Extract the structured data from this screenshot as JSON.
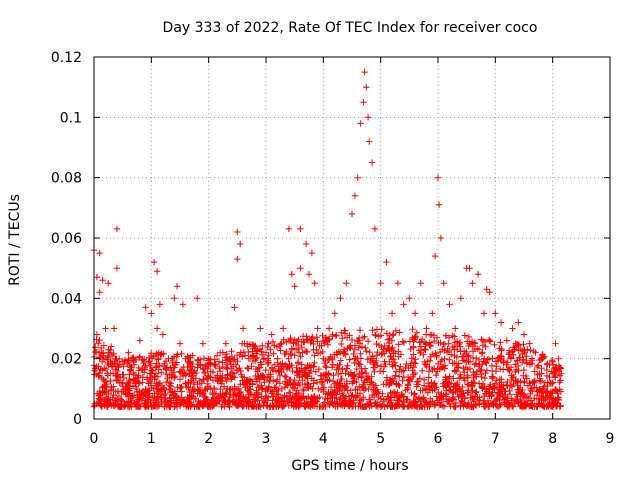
{
  "chart_data": {
    "type": "scatter",
    "title": "Day 333 of 2022, Rate Of TEC Index for receiver coco",
    "xlabel": "GPS time / hours",
    "ylabel": "ROTI / TECUs",
    "xlim": [
      0,
      9
    ],
    "ylim": [
      0,
      0.12
    ],
    "x_ticks": [
      "0",
      "1",
      "2",
      "3",
      "4",
      "5",
      "6",
      "7",
      "8",
      "9"
    ],
    "y_ticks": [
      "0",
      "0.02",
      "0.04",
      "0.06",
      "0.08",
      "0.1",
      "0.12"
    ],
    "grid": true,
    "marker": "+",
    "color": "#ff0000",
    "x_range_of_points": [
      0.0,
      8.15
    ],
    "series": [
      {
        "x": [
          0.0,
          0.05,
          0.05,
          0.1,
          0.1,
          0.15,
          0.2,
          0.25,
          0.25,
          0.3,
          0.35,
          0.4,
          0.4,
          0.45,
          0.5,
          0.6,
          0.7,
          0.8,
          0.9,
          1.0,
          1.05,
          1.1,
          1.1,
          1.15,
          1.2,
          1.3,
          1.4,
          1.45,
          1.5,
          1.55,
          1.6,
          1.7,
          1.8,
          1.9,
          2.0,
          2.1,
          2.2,
          2.3,
          2.45,
          2.5,
          2.5,
          2.55,
          2.6,
          2.7,
          2.8,
          2.9,
          3.0,
          3.1,
          3.2,
          3.3,
          3.4,
          3.45,
          3.5,
          3.6,
          3.6,
          3.7,
          3.75,
          3.8,
          3.85,
          3.9,
          4.0,
          4.1,
          4.2,
          4.3,
          4.4,
          4.5,
          4.55,
          4.6,
          4.65,
          4.7,
          4.72,
          4.75,
          4.78,
          4.8,
          4.85,
          4.9,
          5.0,
          5.1,
          5.2,
          5.3,
          5.4,
          5.5,
          5.6,
          5.7,
          5.8,
          5.9,
          5.95,
          6.0,
          6.02,
          6.05,
          6.1,
          6.2,
          6.3,
          6.4,
          6.5,
          6.55,
          6.6,
          6.7,
          6.8,
          6.85,
          6.9,
          7.0,
          7.1,
          7.2,
          7.3,
          7.4,
          7.5,
          7.6,
          7.7,
          7.8,
          7.9,
          8.0,
          8.05,
          8.1,
          8.15
        ],
        "y": [
          0.056,
          0.047,
          0.028,
          0.055,
          0.042,
          0.046,
          0.03,
          0.022,
          0.045,
          0.024,
          0.03,
          0.063,
          0.05,
          0.018,
          0.012,
          0.022,
          0.018,
          0.026,
          0.037,
          0.035,
          0.052,
          0.049,
          0.03,
          0.038,
          0.028,
          0.02,
          0.04,
          0.044,
          0.025,
          0.038,
          0.02,
          0.016,
          0.04,
          0.025,
          0.02,
          0.018,
          0.022,
          0.025,
          0.037,
          0.062,
          0.053,
          0.058,
          0.03,
          0.02,
          0.024,
          0.03,
          0.022,
          0.028,
          0.02,
          0.03,
          0.063,
          0.048,
          0.044,
          0.05,
          0.063,
          0.058,
          0.048,
          0.055,
          0.045,
          0.03,
          0.02,
          0.03,
          0.035,
          0.04,
          0.045,
          0.068,
          0.074,
          0.08,
          0.098,
          0.105,
          0.115,
          0.11,
          0.1,
          0.092,
          0.085,
          0.063,
          0.045,
          0.052,
          0.035,
          0.045,
          0.038,
          0.04,
          0.035,
          0.045,
          0.03,
          0.035,
          0.054,
          0.08,
          0.071,
          0.06,
          0.045,
          0.038,
          0.03,
          0.04,
          0.05,
          0.05,
          0.045,
          0.048,
          0.035,
          0.043,
          0.042,
          0.035,
          0.032,
          0.026,
          0.03,
          0.032,
          0.028,
          0.025,
          0.022,
          0.02,
          0.018,
          0.019,
          0.025,
          0.02,
          0.015
        ]
      }
    ],
    "density_profile": {
      "hours": [
        0,
        0.5,
        1,
        1.5,
        2,
        2.5,
        3,
        3.5,
        4,
        4.5,
        5,
        5.5,
        6,
        6.5,
        7,
        7.5,
        8,
        8.15
      ],
      "typical_min_roti": [
        0.004,
        0.004,
        0.004,
        0.004,
        0.004,
        0.004,
        0.004,
        0.004,
        0.004,
        0.004,
        0.004,
        0.004,
        0.004,
        0.004,
        0.004,
        0.004,
        0.004,
        0.004
      ],
      "typical_max_roti": [
        0.028,
        0.02,
        0.022,
        0.022,
        0.02,
        0.025,
        0.025,
        0.028,
        0.028,
        0.03,
        0.03,
        0.03,
        0.028,
        0.028,
        0.026,
        0.025,
        0.02,
        0.018
      ]
    }
  }
}
